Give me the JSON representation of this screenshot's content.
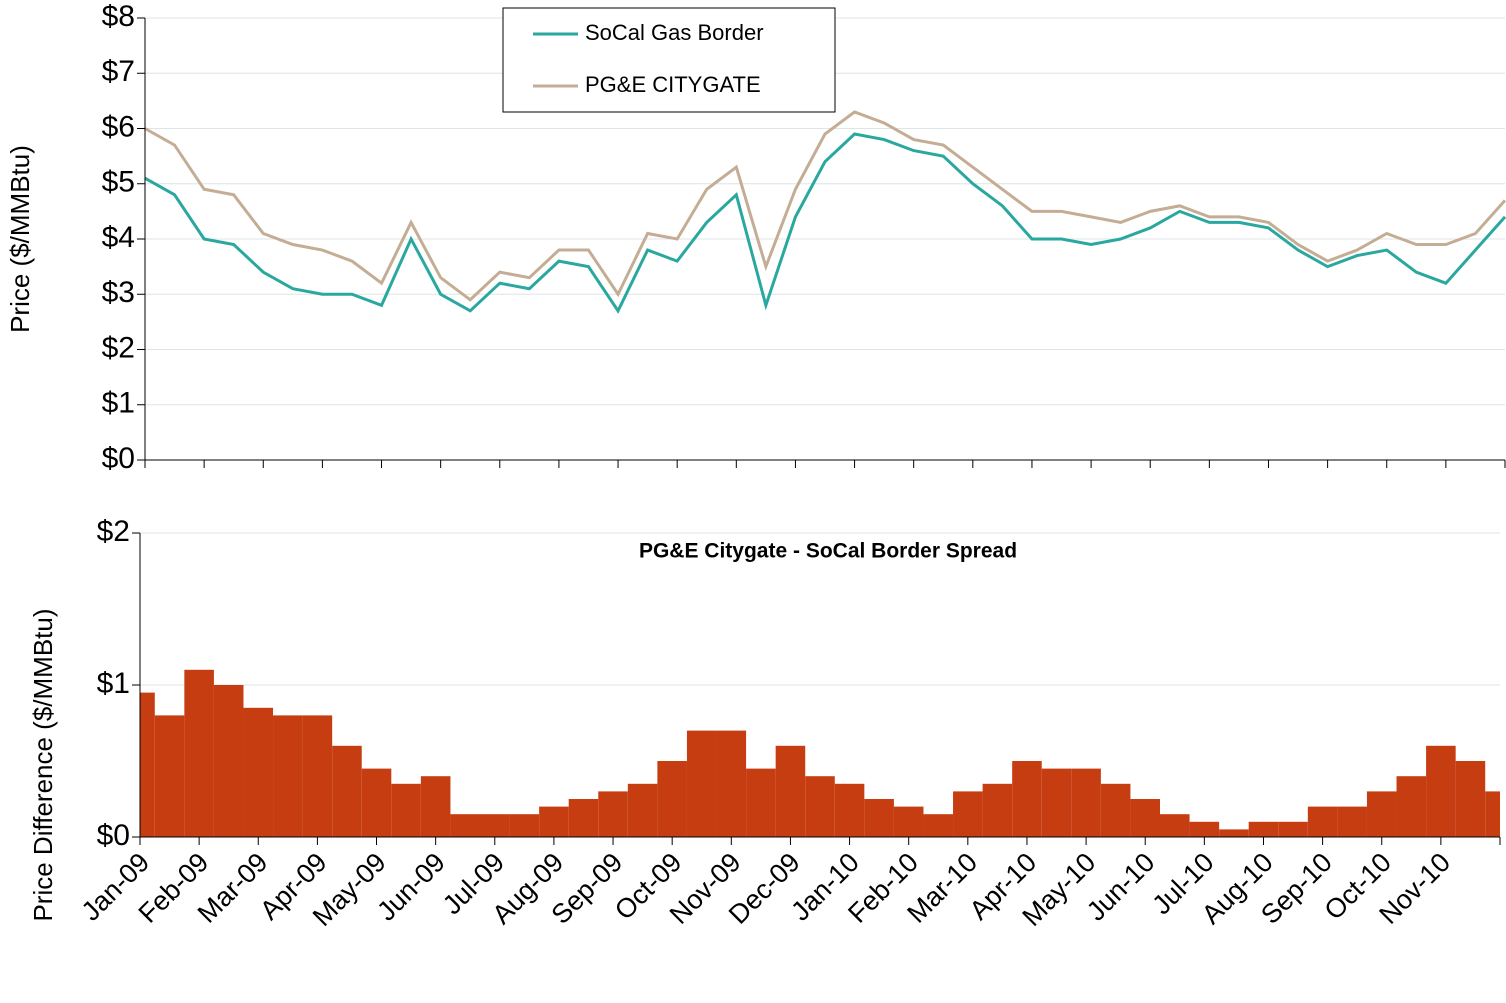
{
  "chart_data": [
    {
      "type": "line",
      "ylabel": "Price ($/MMBtu)",
      "ylim": [
        0,
        8
      ],
      "yticks": [
        {
          "value": 0,
          "label": "$0"
        },
        {
          "value": 1,
          "label": "$1"
        },
        {
          "value": 2,
          "label": "$2"
        },
        {
          "value": 3,
          "label": "$3"
        },
        {
          "value": 4,
          "label": "$4"
        },
        {
          "value": 5,
          "label": "$5"
        },
        {
          "value": 6,
          "label": "$6"
        },
        {
          "value": 7,
          "label": "$7"
        },
        {
          "value": 8,
          "label": "$8"
        }
      ],
      "grid": true,
      "legend": "top-center",
      "series": [
        {
          "name": "SoCal Gas Border",
          "color": "#2aa8a0",
          "values": [
            5.1,
            4.8,
            4.0,
            3.9,
            3.4,
            3.1,
            3.0,
            3.0,
            2.8,
            4.0,
            3.0,
            2.7,
            3.2,
            3.1,
            3.6,
            3.5,
            2.7,
            3.8,
            3.6,
            4.3,
            4.8,
            2.8,
            4.4,
            5.4,
            5.9,
            5.8,
            5.6,
            5.5,
            5.0,
            4.6,
            4.0,
            4.0,
            3.9,
            4.0,
            4.2,
            4.5,
            4.3,
            4.3,
            4.2,
            3.8,
            3.5,
            3.7,
            3.8,
            3.4,
            3.2,
            3.8,
            4.4
          ]
        },
        {
          "name": "PG&E CITYGATE",
          "color": "#c4ad94",
          "values": [
            6.0,
            5.7,
            4.9,
            4.8,
            4.1,
            3.9,
            3.8,
            3.6,
            3.2,
            4.3,
            3.3,
            2.9,
            3.4,
            3.3,
            3.8,
            3.8,
            3.0,
            4.1,
            4.0,
            4.9,
            5.3,
            3.5,
            4.9,
            5.9,
            6.3,
            6.1,
            5.8,
            5.7,
            5.3,
            4.9,
            4.5,
            4.5,
            4.4,
            4.3,
            4.5,
            4.6,
            4.4,
            4.4,
            4.3,
            3.9,
            3.6,
            3.8,
            4.1,
            3.9,
            3.9,
            4.1,
            4.7
          ]
        }
      ]
    },
    {
      "type": "bar",
      "title": "PG&E Citygate - SoCal Border Spread",
      "ylabel": "Price Difference ($/MMBtu)",
      "categories": [
        "Jan-09",
        null,
        "Feb-09",
        null,
        "Mar-09",
        null,
        "Apr-09",
        null,
        "May-09",
        null,
        "Jun-09",
        null,
        "Jul-09",
        null,
        "Aug-09",
        null,
        "Sep-09",
        null,
        "Oct-09",
        null,
        "Nov-09",
        null,
        "Dec-09",
        null,
        "Jan-10",
        null,
        "Feb-10",
        null,
        "Mar-10",
        null,
        "Apr-10",
        null,
        "May-10",
        null,
        "Jun-10",
        null,
        "Jul-10",
        null,
        "Aug-10",
        null,
        "Sep-10",
        null,
        "Oct-10",
        null,
        "Nov-10",
        null,
        null
      ],
      "values": [
        0.95,
        0.8,
        1.1,
        1.0,
        0.85,
        0.8,
        0.8,
        0.6,
        0.45,
        0.35,
        0.4,
        0.15,
        0.15,
        0.15,
        0.2,
        0.25,
        0.3,
        0.35,
        0.5,
        0.7,
        0.7,
        0.45,
        0.6,
        0.4,
        0.35,
        0.25,
        0.2,
        0.15,
        0.3,
        0.35,
        0.5,
        0.45,
        0.45,
        0.35,
        0.25,
        0.15,
        0.1,
        0.05,
        0.1,
        0.1,
        0.2,
        0.2,
        0.3,
        0.4,
        0.6,
        0.5,
        0.3
      ],
      "color": "#c63d12",
      "ylim": [
        0,
        2
      ],
      "yticks": [
        {
          "value": 0,
          "label": "$0"
        },
        {
          "value": 1,
          "label": "$1"
        },
        {
          "value": 2,
          "label": "$2"
        }
      ],
      "grid": true
    }
  ]
}
